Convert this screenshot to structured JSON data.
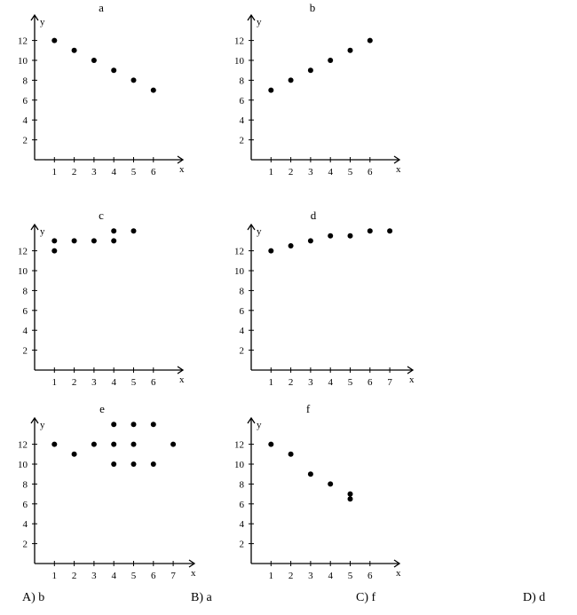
{
  "chart_data": [
    {
      "type": "scatter",
      "title": "a",
      "xlabel": "x",
      "ylabel": "y",
      "xticks": [
        1,
        2,
        3,
        4,
        5,
        6
      ],
      "yticks": [
        2,
        4,
        6,
        8,
        10,
        12
      ],
      "xlim": [
        0,
        6.6
      ],
      "ylim": [
        0,
        13.5
      ],
      "grid": false,
      "points": [
        [
          1,
          12
        ],
        [
          2,
          11
        ],
        [
          3,
          10
        ],
        [
          4,
          9
        ],
        [
          5,
          8
        ],
        [
          6,
          7
        ]
      ]
    },
    {
      "type": "scatter",
      "title": "b",
      "xlabel": "x",
      "ylabel": "y",
      "xticks": [
        1,
        2,
        3,
        4,
        5,
        6
      ],
      "yticks": [
        2,
        4,
        6,
        8,
        10,
        12
      ],
      "xlim": [
        0,
        6.6
      ],
      "ylim": [
        0,
        13.5
      ],
      "grid": false,
      "points": [
        [
          1,
          7
        ],
        [
          2,
          8
        ],
        [
          3,
          9
        ],
        [
          4,
          10
        ],
        [
          5,
          11
        ],
        [
          6,
          12
        ]
      ]
    },
    {
      "type": "scatter",
      "title": "c",
      "xlabel": "x",
      "ylabel": "y",
      "xticks": [
        1,
        2,
        3,
        4,
        5,
        6
      ],
      "yticks": [
        2,
        4,
        6,
        8,
        10,
        12
      ],
      "xlim": [
        0,
        6.6
      ],
      "ylim": [
        0,
        14
      ],
      "grid": false,
      "points": [
        [
          1,
          13
        ],
        [
          1,
          12
        ],
        [
          2,
          13
        ],
        [
          3,
          13
        ],
        [
          4,
          14
        ],
        [
          4,
          13
        ],
        [
          5,
          14
        ]
      ]
    },
    {
      "type": "scatter",
      "title": "d",
      "xlabel": "x",
      "ylabel": "y",
      "xticks": [
        1,
        2,
        3,
        4,
        5,
        6,
        7
      ],
      "yticks": [
        2,
        4,
        6,
        8,
        10,
        12
      ],
      "xlim": [
        0,
        7.6
      ],
      "ylim": [
        0,
        14
      ],
      "grid": false,
      "points": [
        [
          1,
          12
        ],
        [
          2,
          12.5
        ],
        [
          3,
          13
        ],
        [
          4,
          13.5
        ],
        [
          5,
          13.5
        ],
        [
          6,
          14
        ],
        [
          7,
          14
        ]
      ]
    },
    {
      "type": "scatter",
      "title": "e",
      "xlabel": "x",
      "ylabel": "y",
      "xticks": [
        1,
        2,
        3,
        4,
        5,
        6,
        7
      ],
      "yticks": [
        2,
        4,
        6,
        8,
        10,
        12
      ],
      "xlim": [
        0,
        7.6
      ],
      "ylim": [
        0,
        14
      ],
      "grid": false,
      "points": [
        [
          1,
          12
        ],
        [
          2,
          11
        ],
        [
          3,
          12
        ],
        [
          4,
          14
        ],
        [
          4,
          12
        ],
        [
          4,
          10
        ],
        [
          5,
          14
        ],
        [
          5,
          12
        ],
        [
          5,
          10
        ],
        [
          6,
          14
        ],
        [
          6,
          10
        ],
        [
          7,
          12
        ]
      ]
    },
    {
      "type": "scatter",
      "title": "f",
      "xlabel": "x",
      "ylabel": "y",
      "xticks": [
        1,
        2,
        3,
        4,
        5,
        6
      ],
      "yticks": [
        2,
        4,
        6,
        8,
        10,
        12
      ],
      "xlim": [
        0,
        6.6
      ],
      "ylim": [
        0,
        13.5
      ],
      "grid": false,
      "points": [
        [
          1,
          12
        ],
        [
          2,
          11
        ],
        [
          3,
          9
        ],
        [
          4,
          8
        ],
        [
          5,
          7
        ],
        [
          5,
          6.5
        ]
      ]
    }
  ],
  "answers": [
    {
      "label": "A) b"
    },
    {
      "label": "B) a"
    },
    {
      "label": "C) f"
    },
    {
      "label": "D) d"
    }
  ]
}
